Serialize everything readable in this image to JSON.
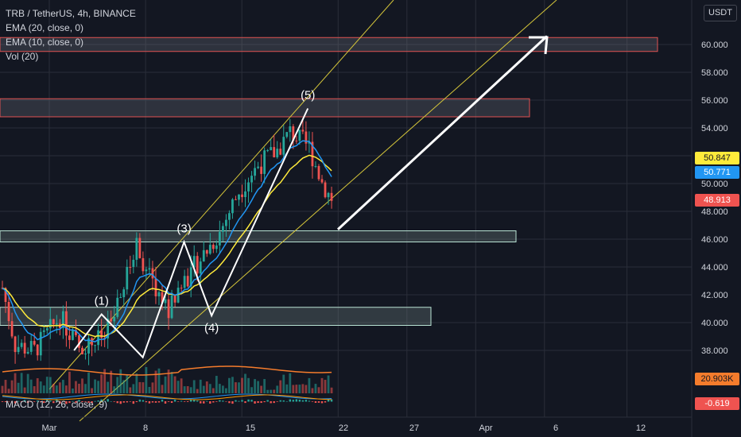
{
  "header": {
    "symbol_line": "TRB / TetherUS, 4h, BINANCE",
    "indicators": [
      "EMA (20, close, 0)",
      "EMA (10, close, 0)",
      "Vol (20)"
    ],
    "currency_button": "USDT",
    "macd_label": "MACD (12, 26, close, 9)"
  },
  "price_tags": {
    "ema20": "50.847",
    "ema10": "50.771",
    "last": "48.913",
    "volume": "20.903K",
    "macd": "-0.619"
  },
  "colors": {
    "background": "#131722",
    "grid": "#2a2e39",
    "up": "#26a69a",
    "down": "#ef5350",
    "ema20": "#ffeb3b",
    "ema10": "#2196f3",
    "channel": "#d4c53a",
    "arrow": "#ffffff"
  },
  "chart_data": {
    "type": "candlestick",
    "price_axis": {
      "ticks": [
        38.0,
        40.0,
        42.0,
        44.0,
        46.0,
        48.0,
        50.0,
        52.0,
        54.0,
        56.0,
        58.0,
        60.0
      ],
      "tick_labels": [
        "38.000",
        "40.000",
        "42.000",
        "44.000",
        "46.000",
        "48.000",
        "50.000",
        "52.000",
        "54.000",
        "56.000",
        "58.000",
        "60.000"
      ]
    },
    "time_axis": {
      "labels": [
        "Mar",
        "8",
        "15",
        "22",
        "27",
        "Apr",
        "6",
        "12"
      ]
    },
    "candles_summary": {
      "start_price": 38.0,
      "end_price": 48.91,
      "high": 54.8
    },
    "waves": [
      {
        "label": "(1)",
        "date": "Mar 3",
        "price": 40.6
      },
      {
        "label": "(2)",
        "date": "Mar 5",
        "price": 38.0
      },
      {
        "label": "(3)",
        "date": "Mar 9",
        "price": 45.8
      },
      {
        "label": "(4)",
        "date": "Mar 11",
        "price": 40.5
      },
      {
        "label": "(5)",
        "date": "Mar 18",
        "price": 55.4
      }
    ],
    "zones": [
      {
        "from": 59.5,
        "to": 60.5,
        "color": "red"
      },
      {
        "from": 54.8,
        "to": 56.1,
        "color": "red"
      },
      {
        "from": 45.8,
        "to": 46.6,
        "color": "green"
      },
      {
        "from": 39.8,
        "to": 41.1,
        "color": "green"
      }
    ],
    "projection_arrow": {
      "from_price": 46.7,
      "to_price": 60.6
    }
  }
}
